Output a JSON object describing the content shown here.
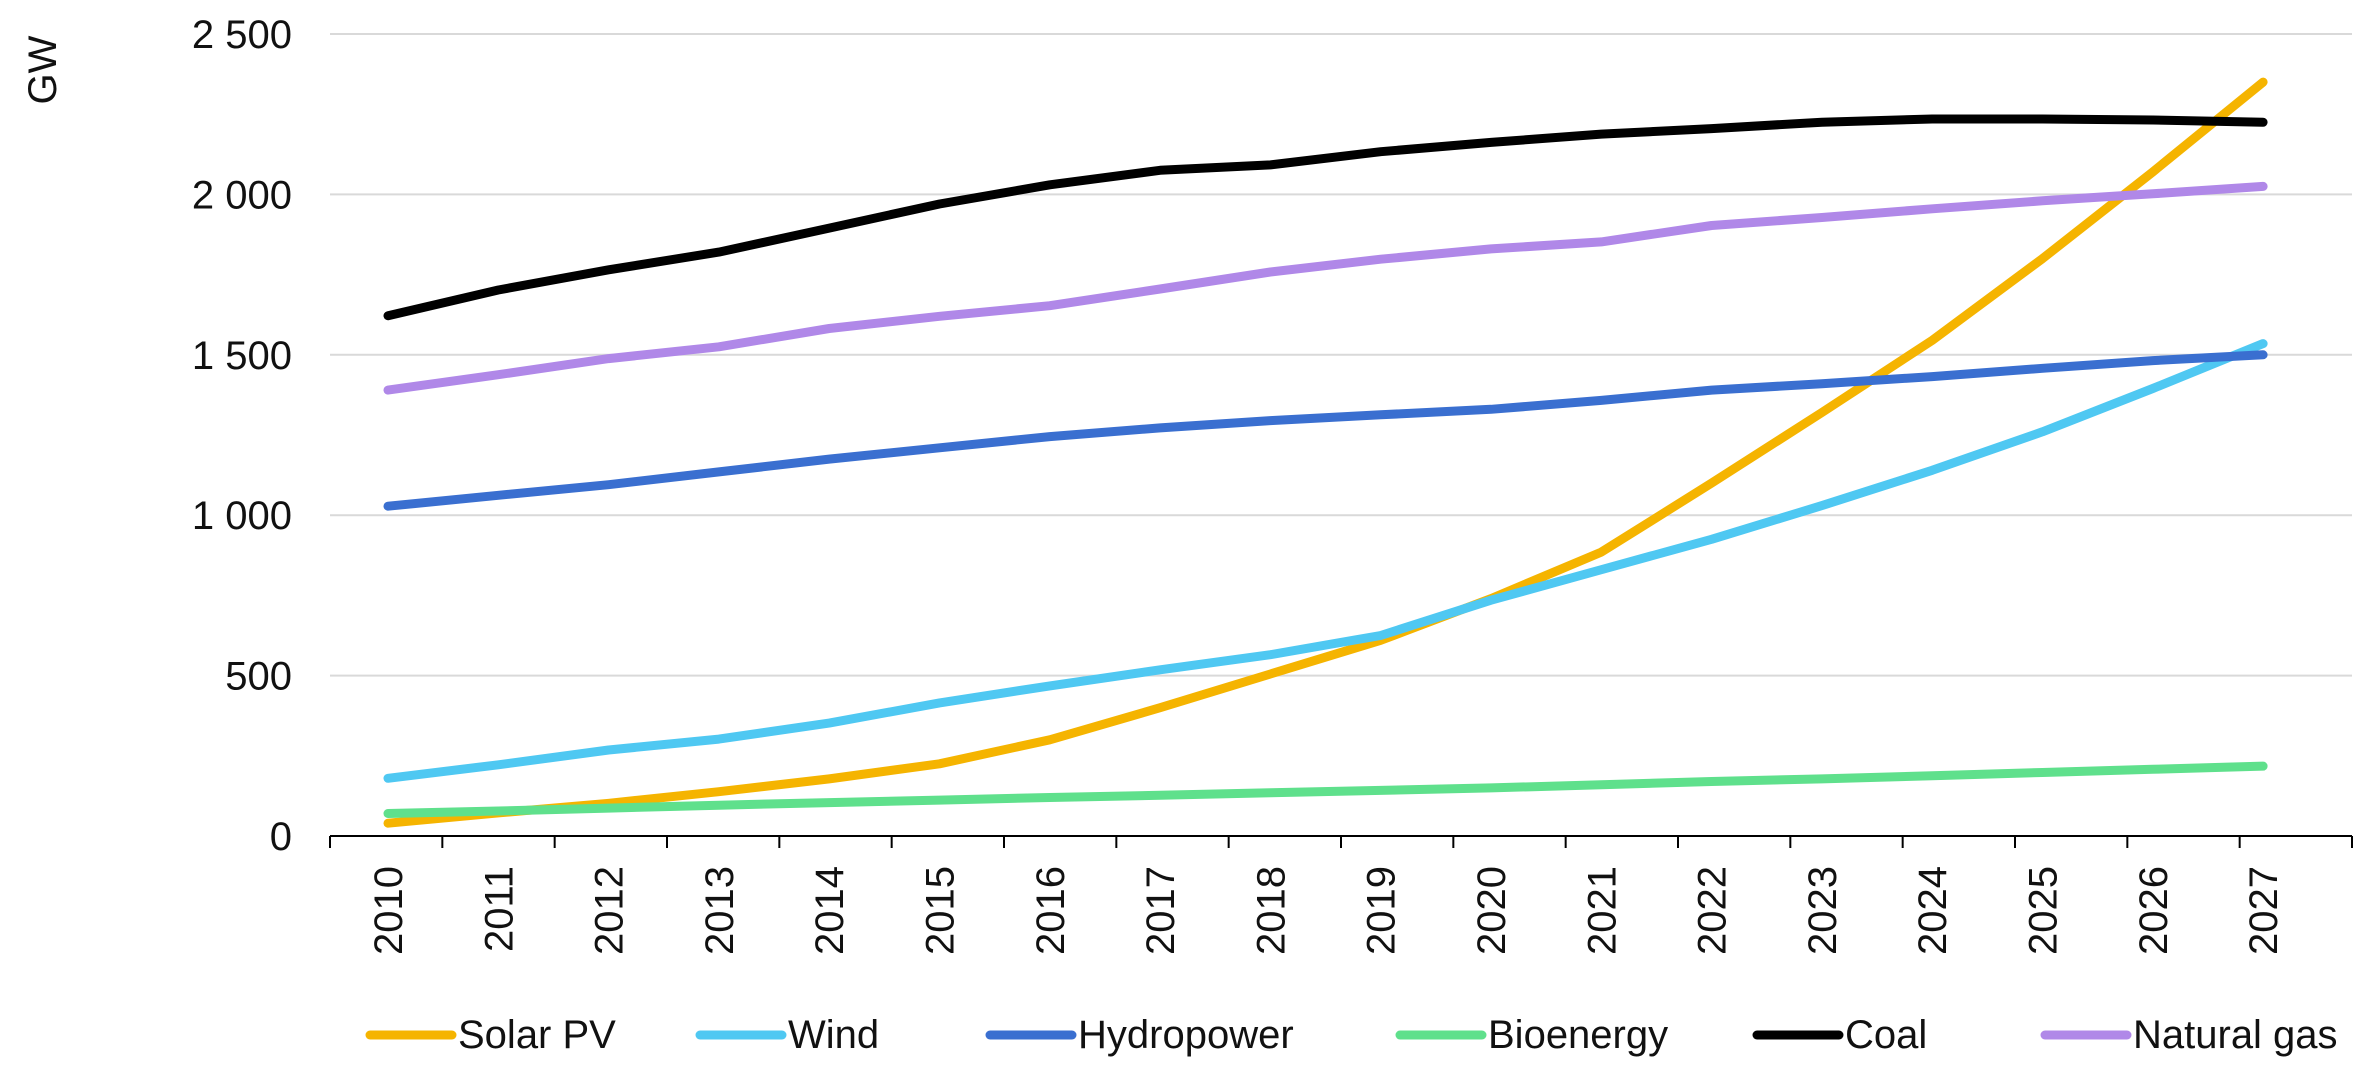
{
  "chart_data": {
    "type": "line",
    "title": "",
    "xlabel": "",
    "ylabel": "GW",
    "ylim": [
      0,
      2500
    ],
    "yticks": [
      0,
      500,
      1000,
      1500,
      2000,
      2500
    ],
    "ytick_labels": [
      "0",
      "500",
      "1 000",
      "1 500",
      "2 000",
      "2 500"
    ],
    "grid": true,
    "legend_position": "bottom",
    "x": [
      "2010",
      "2011",
      "2012",
      "2013",
      "2014",
      "2015",
      "2016",
      "2017",
      "2018",
      "2019",
      "2020",
      "2021",
      "2022",
      "2023",
      "2024",
      "2025",
      "2026",
      "2027"
    ],
    "series": [
      {
        "name": "Solar PV",
        "color": "#f5b400",
        "values": [
          40,
          72,
          102,
          138,
          178,
          225,
          300,
          400,
          505,
          610,
          740,
          885,
          1100,
          1320,
          1545,
          1800,
          2070,
          2350
        ]
      },
      {
        "name": "Wind",
        "color": "#4fc8f2",
        "values": [
          180,
          222,
          268,
          302,
          352,
          415,
          468,
          518,
          565,
          625,
          735,
          830,
          925,
          1030,
          1140,
          1260,
          1395,
          1535
        ]
      },
      {
        "name": "Hydropower",
        "color": "#3a6fd0",
        "values": [
          1028,
          1062,
          1095,
          1135,
          1175,
          1210,
          1245,
          1272,
          1295,
          1313,
          1330,
          1358,
          1390,
          1410,
          1432,
          1458,
          1482,
          1500
        ]
      },
      {
        "name": "Bioenergy",
        "color": "#5fe08c",
        "values": [
          70,
          78,
          87,
          96,
          104,
          112,
          120,
          127,
          135,
          142,
          150,
          160,
          170,
          178,
          188,
          198,
          208,
          218
        ]
      },
      {
        "name": "Coal",
        "color": "#000000",
        "values": [
          1622,
          1702,
          1765,
          1820,
          1895,
          1970,
          2030,
          2075,
          2092,
          2133,
          2162,
          2188,
          2205,
          2225,
          2235,
          2235,
          2232,
          2225
        ]
      },
      {
        "name": "Natural gas",
        "color": "#b088e8",
        "values": [
          1390,
          1438,
          1488,
          1525,
          1582,
          1620,
          1653,
          1705,
          1758,
          1798,
          1830,
          1852,
          1903,
          1928,
          1955,
          1980,
          2002,
          2025
        ]
      }
    ]
  }
}
